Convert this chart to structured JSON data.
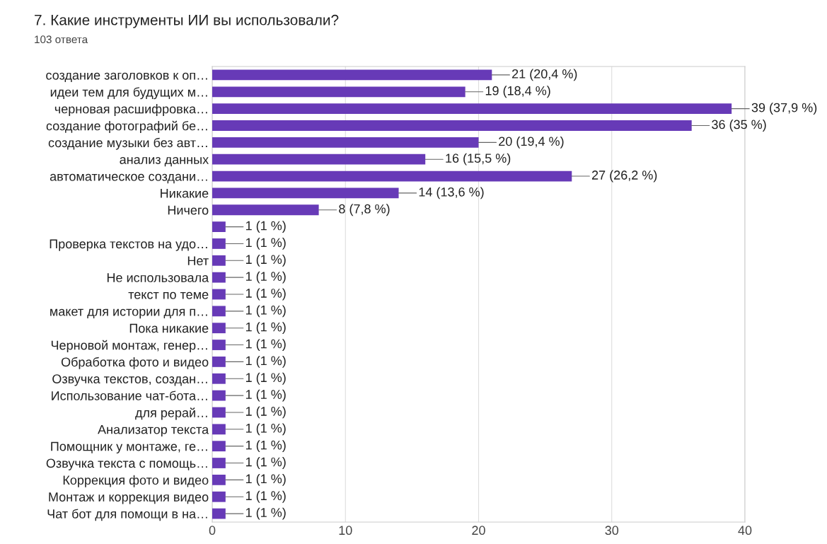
{
  "chart_data": {
    "type": "bar",
    "orientation": "horizontal",
    "title": "7. Какие инструменты ИИ вы использовали?",
    "subtitle": "103 ответа",
    "categories": [
      "создание заголовков к оп…",
      "идеи тем для будущих м…",
      "черновая расшифровка…",
      "создание фотографий бе…",
      "создание музыки без авт…",
      "анализ данных",
      "автоматическое создани…",
      "Никакие",
      "Ничего",
      null,
      "Проверка текстов на удо…",
      "Нет",
      "Не использовала",
      "текст по теме",
      "макет для истории для п…",
      "Пока никакие",
      "Черновой монтаж, генер…",
      "Обработка фото и видео",
      "Озвучка текстов, создан…",
      "Использование чат-бота…",
      "для рерай…",
      "Анализатор текста",
      "Помощник у монтаже, ге…",
      "Озвучка текста с помощь…",
      "Коррекция фото и видео",
      "Монтаж и коррекция видео",
      "Чат бот для помощи в на…"
    ],
    "values": [
      21,
      19,
      39,
      36,
      20,
      16,
      27,
      14,
      8,
      1,
      1,
      1,
      1,
      1,
      1,
      1,
      1,
      1,
      1,
      1,
      1,
      1,
      1,
      1,
      1,
      1,
      1
    ],
    "value_labels": [
      "21 (20,4 %)",
      "19 (18,4 %)",
      "39 (37,9 %)",
      "36 (35 %)",
      "20 (19,4 %)",
      "16 (15,5 %)",
      "27 (26,2 %)",
      "14 (13,6 %)",
      "8 (7,8 %)",
      "1 (1 %)",
      "1 (1 %)",
      "1 (1 %)",
      "1 (1 %)",
      "1 (1 %)",
      "1 (1 %)",
      "1 (1 %)",
      "1 (1 %)",
      "1 (1 %)",
      "1 (1 %)",
      "1 (1 %)",
      "1 (1 %)",
      "1 (1 %)",
      "1 (1 %)",
      "1 (1 %)",
      "1 (1 %)",
      "1 (1 %)",
      "1 (1 %)"
    ],
    "color": "#673ab7",
    "xlim": [
      0,
      40
    ],
    "xticks": [
      0,
      10,
      20,
      30,
      40
    ],
    "grid": "x"
  }
}
